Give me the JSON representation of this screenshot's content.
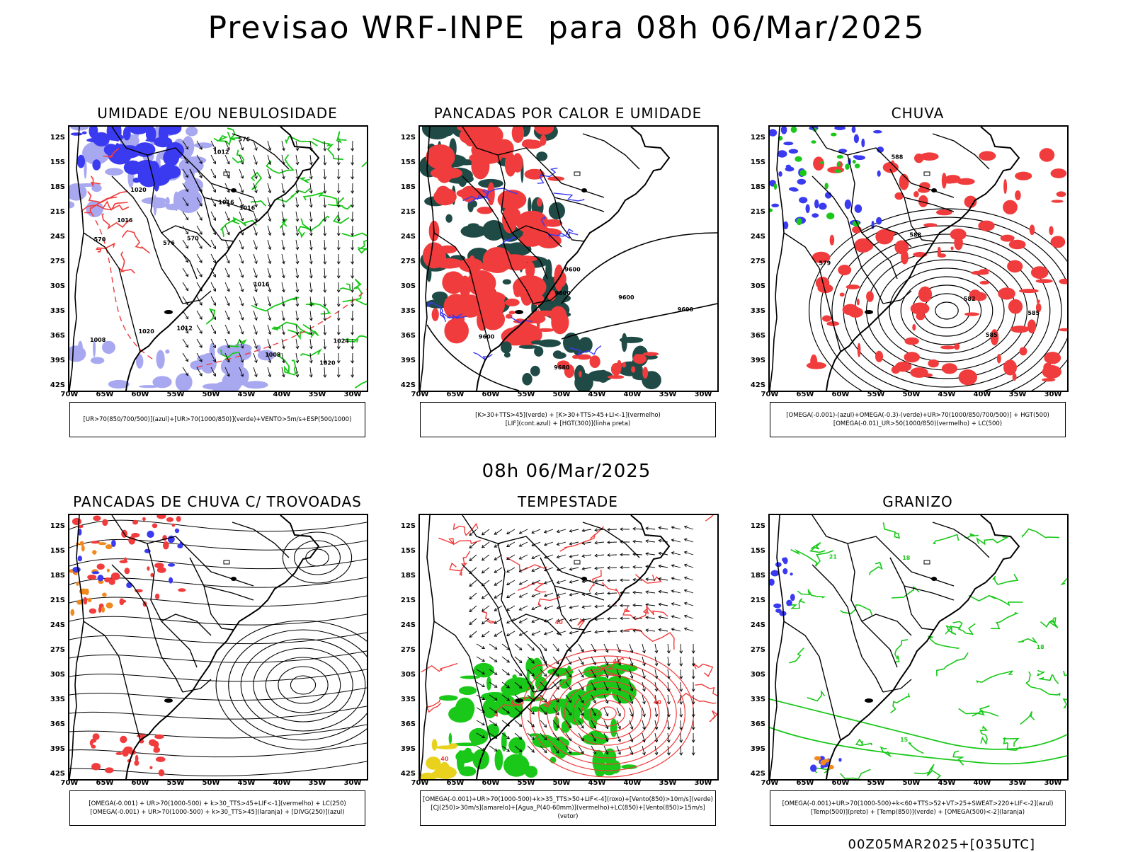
{
  "header": {
    "title": "Previsao WRF-INPE  para 08h 06/Mar/2025",
    "mid_time": "08h 06/Mar/2025",
    "footer": "00Z05MAR2025+[035UTC]"
  },
  "axes": {
    "lat_labels": [
      "12S",
      "15S",
      "18S",
      "21S",
      "24S",
      "27S",
      "30S",
      "33S",
      "36S",
      "39S",
      "42S"
    ],
    "lon_labels": [
      "70W",
      "65W",
      "60W",
      "55W",
      "50W",
      "45W",
      "40W",
      "35W",
      "30W"
    ]
  },
  "colors": {
    "blue": "#3a3af0",
    "lightblue": "#a8a8f0",
    "green": "#19c819",
    "red": "#f03c3c",
    "darkteal": "#1f4a46",
    "orange": "#f08a1e",
    "yellow": "#e8d21e"
  },
  "panels": [
    {
      "title": "UMIDADE E/OU NEBULOSIDADE",
      "legend": [
        "[UR>70(850/700/500)](azul)+[UR>70(1000/850)](verde)+VENTO>5m/s+ESP(500/1000)"
      ],
      "contour_labels": [
        "1012",
        "1016",
        "1016",
        "1016",
        "1020",
        "1020",
        "1024",
        "1020",
        "1016",
        "1008",
        "1008",
        "1012",
        "570",
        "576",
        "570",
        "576"
      ]
    },
    {
      "title": "PANCADAS POR CALOR E UMIDADE",
      "legend": [
        "[K>30+TTS>45](verde) + [K>30+TTS>45+LI<-1](vermelho)",
        "[LIF](cont.azul) + [HGT(300)](linha preta)"
      ],
      "contour_labels": [
        "9600",
        "9600",
        "9600",
        "9680",
        "9600",
        "9600"
      ]
    },
    {
      "title": "CHUVA",
      "legend": [
        "[OMEGA(-0.001)-(azul)+OMEGA(-0.3)-(verde)+UR>70(1000/850/700/500)] + HGT(500)",
        "[OMEGA(-0.01)_UR>50(1000/850)(vermelho) + LC(500)"
      ],
      "contour_labels": [
        "588",
        "588",
        "585",
        "582",
        "579",
        "585"
      ]
    },
    {
      "title": "PANCADAS DE CHUVA C/ TROVOADAS",
      "legend": [
        "[OMEGA(-0.001) + UR>70(1000-500) + k>30_TTS>45+LIF<-1](vermelho) + LC(250)",
        "[OMEGA(-0.001) + UR>70(1000-500) + k>30_TTS>45](laranja) + [DIVG(250)](azul)"
      ],
      "contour_labels": []
    },
    {
      "title": "TEMPESTADE",
      "legend": [
        "[OMEGA(-0.001)+UR>70(1000-500)+k>35_TTS>50+LIF<-4](roxo)+[Vento(850)>10m/s](verde)",
        "[CJ(250)>30m/s](amarelo)+[Agua_P(40-60mm)](vermelho)+LC(850)+[Vento(850)>15m/s](vetor)"
      ],
      "contour_labels": [
        "40",
        "40",
        "40",
        "40"
      ]
    },
    {
      "title": "GRANIZO",
      "legend": [
        "[OMEGA(-0.001)+UR>70(1000-500)+k<60+TTS>52+VT>25+SWEAT>220+LIF<-2](azul)",
        "[Temp(500)](preto) + [Temp(850)](verde) + [OMEGA(500)<-2](laranja)"
      ],
      "contour_labels": [
        "21",
        "18",
        "15",
        "18"
      ]
    }
  ]
}
